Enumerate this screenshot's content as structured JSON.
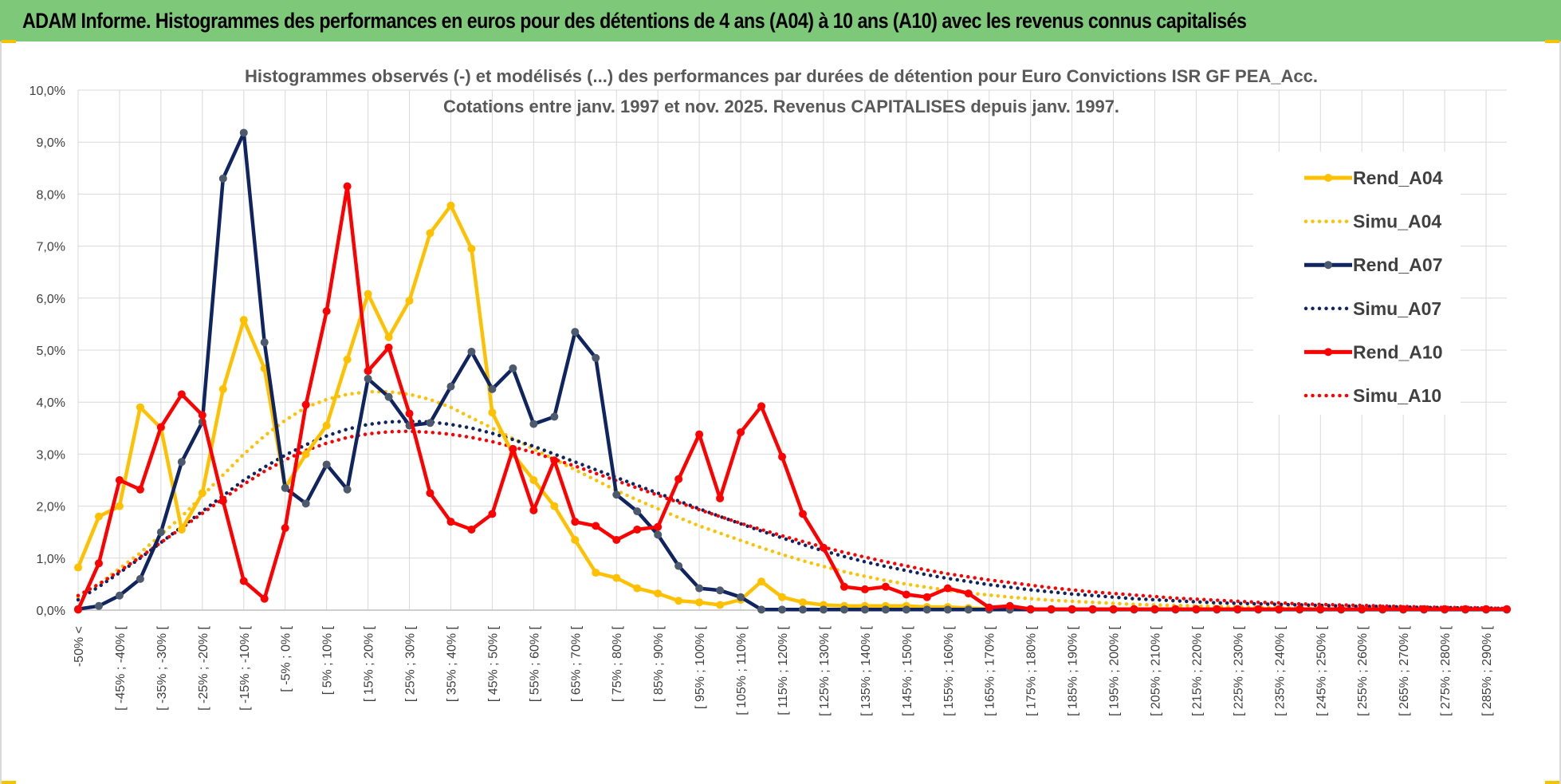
{
  "banner": {
    "title": "ADAM Informe. Histogrammes des performances en euros pour des détentions de 4 ans (A04) à 10 ans (A10) avec les revenus connus capitalisés"
  },
  "colors": {
    "A04": "#ffc000",
    "A07": "#0f2461",
    "A10": "#ff0000",
    "grid": "#d9d9d9",
    "marker07": "#4d5a6e"
  },
  "chart_data": {
    "type": "line",
    "title": "Histogrammes observés (-) et modélisés (...) des performances par durées de détention pour Euro Convictions ISR GF PEA_Acc.",
    "subtitle": "Cotations entre janv. 1997 et nov. 2025. Revenus CAPITALISES depuis janv. 1997.",
    "ylim": [
      0,
      10
    ],
    "yticks": [
      "0,0%",
      "1,0%",
      "2,0%",
      "3,0%",
      "4,0%",
      "5,0%",
      "6,0%",
      "7,0%",
      "8,0%",
      "9,0%",
      "10,0%"
    ],
    "xlabels": [
      "-50% <",
      "[ -45% ; -40% [",
      "[ -35% ; -30% [",
      "[ -25% ; -20% [",
      "[ -15% ; -10% [",
      "[ -5% ; 0% [",
      "[ 5% ; 10% [",
      "[ 15% ; 20% [",
      "[ 25% ; 30% [",
      "[ 35% ; 40% [",
      "[ 45% ; 50% [",
      "[ 55% ; 60% [",
      "[ 65% ; 70% [",
      "[ 75% ; 80% [",
      "[ 85% ; 90% [",
      "[ 95% ; 100% [",
      "[ 105% ; 110% [",
      "[ 115% ; 120% [",
      "[ 125% ; 130% [",
      "[ 135% ; 140% [",
      "[ 145% ; 150% [",
      "[ 155% ; 160% [",
      "[ 165% ; 170% [",
      "[ 175% ; 180% [",
      "[ 185% ; 190% [",
      "[ 195% ; 200% [",
      "[ 205% ; 210% [",
      "[ 215% ; 220% [",
      "[ 225% ; 230% [",
      "[ 235% ; 240% [",
      "[ 245% ; 250% [",
      "[ 255% ; 260% [",
      "[ 265% ; 270% [",
      "[ 275% ; 280% [",
      "[ 285% ; 290% ["
    ],
    "legend_position": "right",
    "series": [
      {
        "name": "Rend_A04",
        "style": "solid",
        "color": "#ffc000",
        "values": [
          0.82,
          1.8,
          2.0,
          3.9,
          3.5,
          1.55,
          2.25,
          4.25,
          5.58,
          4.65,
          2.35,
          3.0,
          3.55,
          4.82,
          6.08,
          5.25,
          5.95,
          7.25,
          7.78,
          6.95,
          3.8,
          3.0,
          2.5,
          2.0,
          1.35,
          0.72,
          0.62,
          0.42,
          0.32,
          0.18,
          0.15,
          0.1,
          0.2,
          0.55,
          0.25,
          0.15,
          0.1,
          0.08,
          0.08,
          0.08,
          0.08,
          0.06,
          0.06,
          0.04,
          0.02,
          0.01,
          0.01,
          0.01,
          0.01,
          0.01,
          0.01,
          0.01,
          0.01,
          0.01,
          0.01,
          0.01,
          0.01,
          0.01,
          0.01,
          0.01,
          0.01,
          0.01,
          0.01,
          0.01,
          0.01,
          0.01,
          0.01,
          0.01,
          0.01,
          0.01
        ]
      },
      {
        "name": "Simu_A04",
        "style": "dotted",
        "color": "#ffc000",
        "values": [
          0.25,
          0.5,
          0.8,
          1.1,
          1.45,
          1.8,
          2.2,
          2.6,
          3.0,
          3.35,
          3.65,
          3.9,
          4.05,
          4.15,
          4.2,
          4.2,
          4.15,
          4.05,
          3.9,
          3.7,
          3.5,
          3.3,
          3.1,
          2.9,
          2.7,
          2.5,
          2.3,
          2.12,
          1.95,
          1.78,
          1.62,
          1.48,
          1.34,
          1.2,
          1.07,
          0.95,
          0.84,
          0.74,
          0.65,
          0.57,
          0.5,
          0.44,
          0.38,
          0.33,
          0.29,
          0.25,
          0.22,
          0.19,
          0.17,
          0.15,
          0.13,
          0.11,
          0.1,
          0.09,
          0.08,
          0.07,
          0.06,
          0.05,
          0.05,
          0.04,
          0.04,
          0.03,
          0.03,
          0.03,
          0.02,
          0.02,
          0.02,
          0.02,
          0.01,
          0.01
        ]
      },
      {
        "name": "Rend_A07",
        "style": "solid",
        "color": "#0f2461",
        "values": [
          0.02,
          0.08,
          0.28,
          0.6,
          1.5,
          2.85,
          3.62,
          8.3,
          9.18,
          5.15,
          2.35,
          2.05,
          2.8,
          2.32,
          4.45,
          4.1,
          3.55,
          3.6,
          4.3,
          4.97,
          4.25,
          4.65,
          3.58,
          3.72,
          5.35,
          4.85,
          2.22,
          1.9,
          1.45,
          0.85,
          0.42,
          0.38,
          0.25,
          0.01,
          0.01,
          0.01,
          0.01,
          0.01,
          0.01,
          0.01,
          0.01,
          0.01,
          0.01,
          0.01,
          0.01,
          0.01,
          0.01,
          0.01,
          0.01,
          0.01,
          0.01,
          0.01,
          0.01,
          0.01,
          0.01,
          0.01,
          0.01,
          0.01,
          0.01,
          0.01,
          0.01,
          0.01,
          0.01,
          0.01,
          0.01,
          0.01,
          0.01,
          0.01,
          0.01,
          0.01
        ]
      },
      {
        "name": "Simu_A07",
        "style": "dotted",
        "color": "#0f2461",
        "values": [
          0.2,
          0.45,
          0.72,
          1.0,
          1.3,
          1.6,
          1.9,
          2.2,
          2.5,
          2.75,
          2.98,
          3.18,
          3.35,
          3.48,
          3.57,
          3.62,
          3.63,
          3.62,
          3.57,
          3.5,
          3.4,
          3.28,
          3.15,
          3.0,
          2.85,
          2.7,
          2.55,
          2.4,
          2.25,
          2.1,
          1.95,
          1.8,
          1.66,
          1.52,
          1.39,
          1.26,
          1.14,
          1.03,
          0.93,
          0.84,
          0.76,
          0.68,
          0.61,
          0.55,
          0.49,
          0.44,
          0.39,
          0.35,
          0.31,
          0.28,
          0.25,
          0.22,
          0.2,
          0.18,
          0.16,
          0.14,
          0.13,
          0.12,
          0.11,
          0.1,
          0.09,
          0.08,
          0.07,
          0.07,
          0.06,
          0.05,
          0.05,
          0.04,
          0.04,
          0.03
        ]
      },
      {
        "name": "Rend_A10",
        "style": "solid",
        "color": "#ff0000",
        "values": [
          0.01,
          0.9,
          2.5,
          2.32,
          3.52,
          4.15,
          3.75,
          2.1,
          0.56,
          0.22,
          1.58,
          3.95,
          5.75,
          8.15,
          4.6,
          5.05,
          3.78,
          2.25,
          1.7,
          1.55,
          1.85,
          3.1,
          1.92,
          2.88,
          1.7,
          1.62,
          1.35,
          1.55,
          1.6,
          2.52,
          3.38,
          2.15,
          3.42,
          3.92,
          2.95,
          1.85,
          1.2,
          0.45,
          0.4,
          0.45,
          0.3,
          0.25,
          0.42,
          0.32,
          0.05,
          0.08,
          0.02,
          0.02,
          0.02,
          0.02,
          0.02,
          0.02,
          0.02,
          0.02,
          0.02,
          0.02,
          0.02,
          0.02,
          0.02,
          0.02,
          0.02,
          0.02,
          0.02,
          0.02,
          0.02,
          0.02,
          0.02,
          0.02,
          0.02,
          0.02
        ]
      },
      {
        "name": "Simu_A10",
        "style": "dotted",
        "color": "#ff0000",
        "values": [
          0.28,
          0.5,
          0.75,
          1.02,
          1.3,
          1.58,
          1.86,
          2.14,
          2.42,
          2.67,
          2.89,
          3.07,
          3.21,
          3.32,
          3.39,
          3.43,
          3.44,
          3.42,
          3.38,
          3.32,
          3.24,
          3.14,
          3.03,
          2.9,
          2.77,
          2.63,
          2.49,
          2.35,
          2.21,
          2.07,
          1.93,
          1.8,
          1.67,
          1.55,
          1.43,
          1.32,
          1.21,
          1.11,
          1.02,
          0.93,
          0.85,
          0.77,
          0.7,
          0.64,
          0.58,
          0.53,
          0.48,
          0.43,
          0.39,
          0.35,
          0.32,
          0.29,
          0.26,
          0.23,
          0.21,
          0.19,
          0.17,
          0.15,
          0.14,
          0.12,
          0.11,
          0.1,
          0.09,
          0.08,
          0.07,
          0.06,
          0.05,
          0.05,
          0.04,
          0.03
        ]
      }
    ]
  }
}
